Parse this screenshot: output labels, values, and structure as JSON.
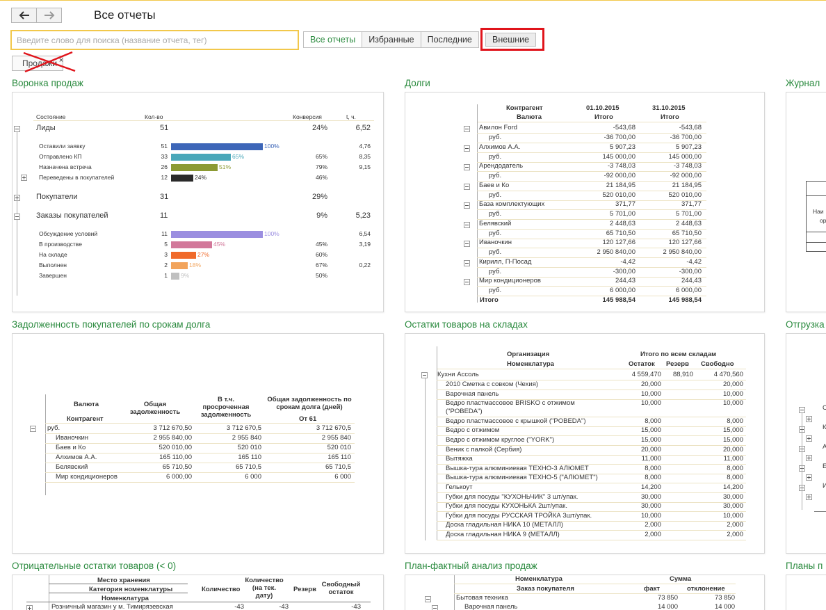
{
  "header": {
    "title": "Все отчеты",
    "back_icon": "arrow-left-icon",
    "forward_icon": "arrow-right-icon"
  },
  "search": {
    "placeholder": "Введите слово для поиска (название отчета, тег)",
    "value": ""
  },
  "tabs": [
    {
      "label": "Все отчеты",
      "active": true
    },
    {
      "label": "Избранные",
      "active": false
    },
    {
      "label": "Последние",
      "active": false
    },
    {
      "label": "Внешние",
      "active": false,
      "highlighted": true
    }
  ],
  "tag_filter": {
    "label": "Продажи",
    "close": "×"
  },
  "colors": {
    "accent_green": "#2a8a3e",
    "highlight_red": "#e0141b",
    "search_border": "#f2c84b"
  },
  "reports": {
    "funnel": {
      "title": "Воронка продаж",
      "headers": [
        "Состояние",
        "Кол-во",
        "Конверсия",
        "t, ч."
      ],
      "groups": [
        {
          "name": "Лиды",
          "count": "51",
          "conv": "24%",
          "t": "6,52",
          "items": [
            {
              "name": "Оставили заявку",
              "count": "51",
              "pct": "100%",
              "pct_value": 100,
              "conv": "",
              "t": "4,76",
              "color": "#3d66b8"
            },
            {
              "name": "Отправлено КП",
              "count": "33",
              "pct": "65%",
              "pct_value": 65,
              "conv": "65%",
              "t": "8,35",
              "color": "#49a7b9"
            },
            {
              "name": "Назначена встреча",
              "count": "26",
              "pct": "51%",
              "pct_value": 51,
              "conv": "79%",
              "t": "9,15",
              "color": "#8c9a33"
            },
            {
              "name": "Переведены в покупателей",
              "count": "12",
              "pct": "24%",
              "pct_value": 24,
              "conv": "46%",
              "t": "",
              "color": "#2a2a2a"
            }
          ]
        },
        {
          "name": "Покупатели",
          "count": "31",
          "conv": "29%",
          "t": "",
          "items": []
        },
        {
          "name": "Заказы покупателей",
          "count": "11",
          "conv": "9%",
          "t": "5,23",
          "items": [
            {
              "name": "Обсуждение условий",
              "count": "11",
              "pct": "100%",
              "pct_value": 100,
              "conv": "",
              "t": "6,54",
              "color": "#9b8ee0"
            },
            {
              "name": "В производстве",
              "count": "5",
              "pct": "45%",
              "pct_value": 45,
              "conv": "45%",
              "t": "3,19",
              "color": "#d2789a"
            },
            {
              "name": "На складе",
              "count": "3",
              "pct": "27%",
              "pct_value": 27,
              "conv": "60%",
              "t": "",
              "color": "#f06a2a"
            },
            {
              "name": "Выполнен",
              "count": "2",
              "pct": "18%",
              "pct_value": 18,
              "conv": "67%",
              "t": "0,22",
              "color": "#f2a45c"
            },
            {
              "name": "Завершен",
              "count": "1",
              "pct": "9%",
              "pct_value": 9,
              "conv": "50%",
              "t": "",
              "color": "#c0c0c0"
            }
          ]
        }
      ]
    },
    "debts": {
      "title": "Долги",
      "headers": {
        "col1": "Контрагент",
        "col1b": "Валюта",
        "d1": "01.10.2015",
        "d2": "31.10.2015",
        "sub": "Итого"
      },
      "rows": [
        {
          "name": "Авилон Ford",
          "v1": "-543,68",
          "v2": "-543,68",
          "rub1": "-36 700,00",
          "rub2": "-36 700,00"
        },
        {
          "name": "Алхимов А.А.",
          "v1": "5 907,23",
          "v2": "5 907,23",
          "rub1": "145 000,00",
          "rub2": "145 000,00"
        },
        {
          "name": "Арендодатель",
          "v1": "-3 748,03",
          "v2": "-3 748,03",
          "rub1": "-92 000,00",
          "rub2": "-92 000,00"
        },
        {
          "name": "Баев и Ко",
          "v1": "21 184,95",
          "v2": "21 184,95",
          "rub1": "520 010,00",
          "rub2": "520 010,00"
        },
        {
          "name": "База комплектующих",
          "v1": "371,77",
          "v2": "371,77",
          "rub1": "5 701,00",
          "rub2": "5 701,00"
        },
        {
          "name": "Белявский",
          "v1": "2 448,63",
          "v2": "2 448,63",
          "rub1": "65 710,50",
          "rub2": "65 710,50"
        },
        {
          "name": "Иваночкин",
          "v1": "120 127,66",
          "v2": "120 127,66",
          "rub1": "2 950 840,00",
          "rub2": "2 950 840,00"
        },
        {
          "name": "Кирилл, П-Посад",
          "v1": "-4,42",
          "v2": "-4,42",
          "rub1": "-300,00",
          "rub2": "-300,00"
        },
        {
          "name": "Мир кондиционеров",
          "v1": "244,43",
          "v2": "244,43",
          "rub1": "6 000,00",
          "rub2": "6 000,00"
        }
      ],
      "rub": "руб.",
      "total": {
        "label": "Итого",
        "v1": "145 988,54",
        "v2": "145 988,54"
      }
    },
    "journal": {
      "title": "Журнал",
      "fragments": [
        "Наи",
        "ор"
      ]
    },
    "receivables": {
      "title": "Задолженность покупателей по срокам долга",
      "headers": {
        "c1": "Валюта",
        "c1b": "Контрагент",
        "c2": "Общая задолженность",
        "c3": "В т.ч. просроченная задолженность",
        "c4": "Общая задолженность по срокам долга (дней)",
        "c4b": "От 61"
      },
      "group": {
        "name": "руб.",
        "v1": "3 712 670,50",
        "v2": "3 712 670,5",
        "v3": "3 712 670,5"
      },
      "rows": [
        {
          "name": "Иваночкин",
          "v1": "2 955 840,00",
          "v2": "2 955 840",
          "v3": "2 955 840"
        },
        {
          "name": "Баев и Ко",
          "v1": "520 010,00",
          "v2": "520 010",
          "v3": "520 010"
        },
        {
          "name": "Алхимов А.А.",
          "v1": "165 110,00",
          "v2": "165 110",
          "v3": "165 110"
        },
        {
          "name": "Белявский",
          "v1": "65 710,50",
          "v2": "65 710,5",
          "v3": "65 710,5"
        },
        {
          "name": "Мир кондиционеров",
          "v1": "6 000,00",
          "v2": "6 000",
          "v3": "6 000"
        }
      ]
    },
    "stock": {
      "title": "Остатки товаров на складах",
      "headers": {
        "org": "Организация",
        "nom": "Номенклатура",
        "all": "Итого по всем складам",
        "c1": "Остаток",
        "c2": "Резерв",
        "c3": "Свободно"
      },
      "group": {
        "name": "Кухни Ассоль",
        "v1": "4 559,470",
        "v2": "88,910",
        "v3": "4 470,560"
      },
      "rows": [
        {
          "name": "2010 Сметка с совком (Чехия)",
          "v1": "20,000",
          "v3": "20,000"
        },
        {
          "name": "Варочная панель",
          "v1": "10,000",
          "v3": "10,000"
        },
        {
          "name": "Ведро пластмассовое BRISKO с отжимом",
          "name2": "(\"POBEDA\")",
          "v1": "10,000",
          "v3": "10,000"
        },
        {
          "name": "Ведро пластмассовое с крышкой (\"POBEDA\")",
          "v1": "8,000",
          "v3": "8,000"
        },
        {
          "name": "Ведро с отжимом",
          "v1": "15,000",
          "v3": "15,000"
        },
        {
          "name": "Ведро с отжимом  круглое (\"YORK\")",
          "v1": "15,000",
          "v3": "15,000"
        },
        {
          "name": "Веник с палкой (Сербия)",
          "v1": "20,000",
          "v3": "20,000"
        },
        {
          "name": "Вытяжка",
          "v1": "11,000",
          "v3": "11,000"
        },
        {
          "name": "Вышка-тура алюминиевая ТЕХНО-3 АЛЮМЕТ",
          "v1": "8,000",
          "v3": "8,000"
        },
        {
          "name": "Вышка-тура алюминиевая ТЕХНО-5 (\"АЛЮМЕТ\")",
          "v1": "8,000",
          "v3": "8,000"
        },
        {
          "name": "Гелькоут",
          "v1": "14,200",
          "v3": "14,200"
        },
        {
          "name": "Губки для посуды \"КУХОНЬЧИК\" 3 шт/упак.",
          "v1": "30,000",
          "v3": "30,000"
        },
        {
          "name": "Губки для посуды КУХОНЬКА 2шт/упак.",
          "v1": "30,000",
          "v3": "30,000"
        },
        {
          "name": "Губки для посуды РУССКАЯ ТРОЙКА 3шт/упак.",
          "v1": "10,000",
          "v3": "10,000"
        },
        {
          "name": "Доска гладильная  НИКА 10 (МЕТАЛЛ)",
          "v1": "2,000",
          "v3": "2,000"
        },
        {
          "name": "Доска гладильная  НИКА 9 (МЕТАЛЛ)",
          "v1": "2,000",
          "v3": "2,000"
        }
      ]
    },
    "shipments": {
      "title": "Отгрузка",
      "fragments": [
        "С",
        "К",
        "А",
        "Е",
        "И"
      ]
    },
    "negative": {
      "title": "Отрицательные остатки товаров (< 0)",
      "headers": {
        "h1": "Место хранения",
        "h2": "Категория номенклатуры",
        "h3": "Номенклатура",
        "c1": "Количество",
        "c2": "Количество (на тек. дату)",
        "c3": "Резерв",
        "c4": "Свободный остаток"
      },
      "row": {
        "name": "Розничный магазин у м. Тимирязевская",
        "v1": "-43",
        "v2": "-43",
        "v4": "-43"
      }
    },
    "planfact": {
      "title": "План-фактный анализ продаж",
      "headers": {
        "h1": "Номенклатура",
        "h2": "Заказ покупателя",
        "sum": "Сумма",
        "c1": "факт",
        "c2": "отклонение"
      },
      "rows": [
        {
          "name": "Бытовая техника",
          "v1": "73 850",
          "v2": "73 850"
        },
        {
          "name": "Варочная панель",
          "v1": "14 000",
          "v2": "14 000"
        }
      ]
    },
    "plans": {
      "title": "Планы п"
    }
  }
}
